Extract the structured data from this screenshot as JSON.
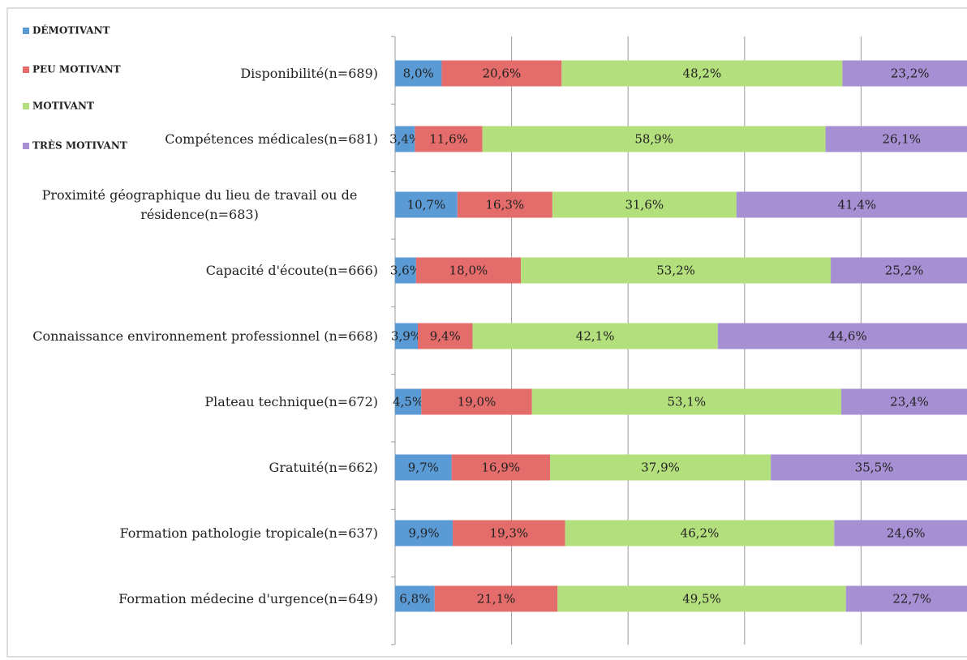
{
  "chart_data": {
    "type": "stacked-barh",
    "categories": [
      "Disponibilité(n=689)",
      "Compétences médicales(n=681)",
      "Proximité géographique du lieu de travail ou de résidence(n=683)",
      "Capacité d'écoute(n=666)",
      "Connaissance environnement professionnel (n=668)",
      "Plateau technique(n=672)",
      "Gratuité(n=662)",
      "Formation pathologie tropicale(n=637)",
      "Formation médecine d'urgence(n=649)"
    ],
    "series": [
      {
        "name": "DÉMOTIVANT",
        "color": "#5b9bd5",
        "values": [
          8.0,
          3.4,
          10.7,
          3.6,
          3.9,
          4.5,
          9.7,
          9.9,
          6.8
        ],
        "value_labels": [
          "8,0%",
          "3,4%",
          "10,7%",
          "3,6%",
          "3,9%",
          "4,5%",
          "9,7%",
          "9,9%",
          "6,8%"
        ]
      },
      {
        "name": "PEU MOTIVANT",
        "color": "#e46c6a",
        "values": [
          20.6,
          11.6,
          16.3,
          18.0,
          9.4,
          19.0,
          16.9,
          19.3,
          21.1
        ],
        "value_labels": [
          "20,6%",
          "11,6%",
          "16,3%",
          "18,0%",
          "9,4%",
          "19,0%",
          "16,9%",
          "19,3%",
          "21,1%"
        ]
      },
      {
        "name": "MOTIVANT",
        "color": "#b4df7d",
        "values": [
          48.2,
          58.9,
          31.6,
          53.2,
          42.1,
          53.1,
          37.9,
          46.2,
          49.5
        ],
        "value_labels": [
          "48,2%",
          "58,9%",
          "31,6%",
          "53,2%",
          "42,1%",
          "53,1%",
          "37,9%",
          "46,2%",
          "49,5%"
        ]
      },
      {
        "name": "TRÈS MOTIVANT",
        "color": "#a68fd2",
        "values": [
          23.2,
          26.1,
          41.4,
          25.2,
          44.6,
          23.4,
          35.5,
          24.6,
          22.7
        ],
        "value_labels": [
          "23,2%",
          "26,1%",
          "41,4%",
          "25,2%",
          "44,6%",
          "23,4%",
          "35,5%",
          "24,6%",
          "22,7%"
        ]
      }
    ],
    "xlim": [
      0,
      100
    ],
    "xticks": [
      0,
      20,
      40,
      60,
      80,
      100
    ],
    "grid": true
  }
}
